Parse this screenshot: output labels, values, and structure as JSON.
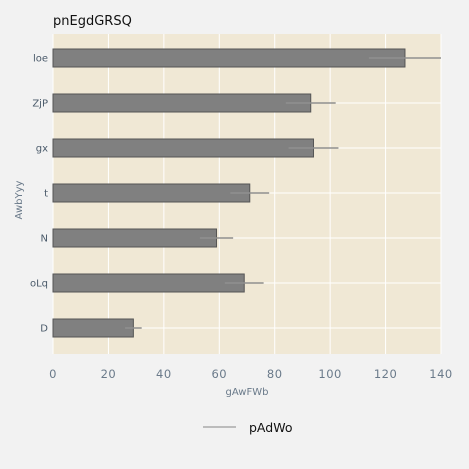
{
  "chart_data": {
    "type": "bar",
    "orientation": "horizontal",
    "title": "pnEgdGRSQ",
    "xlabel": "gAwFWb",
    "ylabel": "AwbYyy",
    "categories": [
      "loe",
      "ZjP",
      "gx",
      "t",
      "N",
      "oLq",
      "D"
    ],
    "series": [
      {
        "name": "pAdWo",
        "values": [
          127,
          93,
          94,
          71,
          59,
          69,
          29
        ],
        "error": [
          13,
          9,
          9,
          7,
          6,
          7,
          3
        ]
      }
    ],
    "xlim": [
      0,
      140
    ],
    "xticks": [
      0,
      20,
      40,
      60,
      80,
      100,
      120,
      140
    ],
    "grid": true,
    "legend_position": "bottom-center",
    "colors": {
      "plot_background": "#f0e8d5",
      "page_background": "#f2f2f2",
      "bar_fill": "#808080",
      "bar_edge": "#555555",
      "error_bar": "#909090",
      "grid": "#ffffff",
      "legend_line": "#aaaaaa"
    }
  }
}
